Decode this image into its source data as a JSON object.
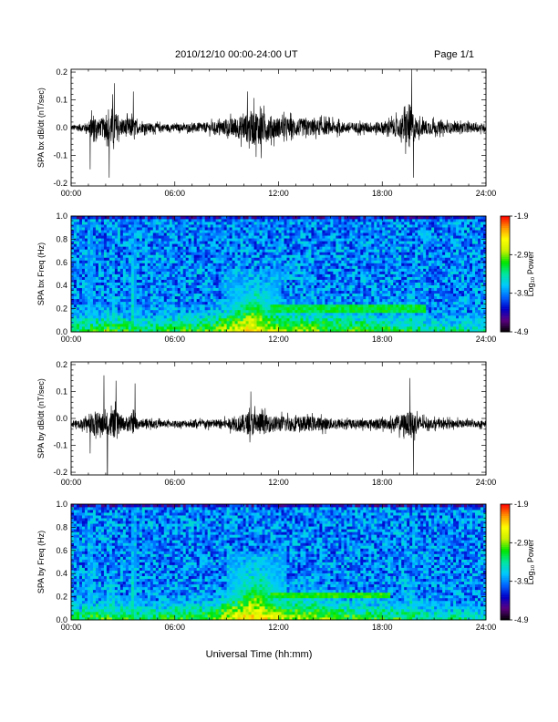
{
  "header": {
    "title": "2010/12/10   00:00-24:00 UT",
    "page": "Page 1/1"
  },
  "xlabel": "Universal Time (hh:mm)",
  "colorbar": {
    "label": "Log₁₀ Power",
    "ticks": [
      "-1.9",
      "-2.9",
      "-3.9",
      "-4.9"
    ],
    "range": [
      -4.9,
      -1.9
    ],
    "colormap": [
      "#000000",
      "#5a0080",
      "#0000c8",
      "#0064ff",
      "#00c8ff",
      "#00e6a0",
      "#00e600",
      "#c8f000",
      "#ffff00",
      "#ff9600",
      "#ff0000"
    ]
  },
  "chart_data": [
    {
      "type": "line",
      "ylabel": "SPA bx dB/dt (nT/sec)",
      "xlim": [
        0,
        24
      ],
      "ylim": [
        -0.21,
        0.21
      ],
      "x_ticks": [
        "00:00",
        "06:00",
        "12:00",
        "18:00",
        "24:00"
      ],
      "y_ticks": [
        "0.2",
        "0.1",
        "0.0",
        "-0.1",
        "-0.2"
      ],
      "y_tick_values": [
        0.2,
        0.1,
        0.0,
        -0.1,
        -0.2
      ],
      "baseline": 0.0,
      "activity": [
        {
          "t": 0.0,
          "amp": 0.015
        },
        {
          "t": 1.0,
          "amp": 0.03
        },
        {
          "t": 1.3,
          "amp": 0.09
        },
        {
          "t": 1.6,
          "amp": 0.05
        },
        {
          "t": 2.1,
          "amp": 0.07
        },
        {
          "t": 2.4,
          "amp": 0.13
        },
        {
          "t": 2.8,
          "amp": 0.05
        },
        {
          "t": 3.5,
          "amp": 0.06
        },
        {
          "t": 4.0,
          "amp": 0.03
        },
        {
          "t": 6.0,
          "amp": 0.02
        },
        {
          "t": 8.5,
          "amp": 0.035
        },
        {
          "t": 9.8,
          "amp": 0.07
        },
        {
          "t": 10.6,
          "amp": 0.11
        },
        {
          "t": 11.3,
          "amp": 0.08
        },
        {
          "t": 12.0,
          "amp": 0.06
        },
        {
          "t": 14.0,
          "amp": 0.05
        },
        {
          "t": 16.0,
          "amp": 0.03
        },
        {
          "t": 18.0,
          "amp": 0.035
        },
        {
          "t": 19.0,
          "amp": 0.06
        },
        {
          "t": 19.6,
          "amp": 0.14
        },
        {
          "t": 20.0,
          "amp": 0.05
        },
        {
          "t": 22.0,
          "amp": 0.03
        },
        {
          "t": 24.0,
          "amp": 0.025
        }
      ],
      "spikes": [
        {
          "t": 1.1,
          "v": -0.15
        },
        {
          "t": 2.2,
          "v": -0.18
        },
        {
          "t": 2.5,
          "v": 0.16
        },
        {
          "t": 3.6,
          "v": 0.13
        },
        {
          "t": 10.2,
          "v": 0.13
        },
        {
          "t": 11.0,
          "v": -0.11
        },
        {
          "t": 19.7,
          "v": 0.21
        },
        {
          "t": 19.8,
          "v": -0.18
        }
      ]
    },
    {
      "type": "heatmap",
      "ylabel": "SPA bx Freq (Hz)",
      "xlim": [
        0,
        24
      ],
      "ylim": [
        0,
        1.0
      ],
      "x_ticks": [
        "00:00",
        "06:00",
        "12:00",
        "18:00",
        "24:00"
      ],
      "y_ticks": [
        "1.0",
        "0.8",
        "0.6",
        "0.4",
        "0.2",
        "0.0"
      ],
      "y_tick_values": [
        1.0,
        0.8,
        0.6,
        0.4,
        0.2,
        0.0
      ],
      "zlim": [
        -4.9,
        -1.9
      ],
      "background": -3.9,
      "low_freq_band": [
        {
          "t": 0,
          "v": -3.2
        },
        {
          "t": 2,
          "v": -3.0
        },
        {
          "t": 4,
          "v": -3.2
        },
        {
          "t": 8,
          "v": -3.0
        },
        {
          "t": 10.5,
          "v": -2.4
        },
        {
          "t": 12,
          "v": -2.8
        },
        {
          "t": 16,
          "v": -3.0
        },
        {
          "t": 20,
          "v": -3.2
        },
        {
          "t": 24,
          "v": -3.4
        }
      ],
      "features": [
        {
          "t": 1.1,
          "width": 0.1,
          "fmax": 1.0,
          "level": -3.2
        },
        {
          "t": 2.5,
          "width": 0.1,
          "fmax": 0.7,
          "level": -3.1
        },
        {
          "t": 3.6,
          "width": 0.12,
          "fmax": 1.0,
          "level": -3.0
        },
        {
          "t": 10.6,
          "width": 1.6,
          "fmax": 0.55,
          "level": -2.8
        },
        {
          "t": 14.2,
          "width": 0.5,
          "fmax": 0.35,
          "level": -3.1
        },
        {
          "t": 19.7,
          "width": 0.2,
          "fmax": 0.45,
          "level": -3.0
        }
      ],
      "tone_lines": [
        {
          "t0": 11.5,
          "t1": 20.5,
          "f": 0.2,
          "level": -3.2
        }
      ]
    },
    {
      "type": "line",
      "ylabel": "SPA by dB/dt (nT/sec)",
      "xlim": [
        0,
        24
      ],
      "ylim": [
        -0.21,
        0.21
      ],
      "x_ticks": [
        "00:00",
        "06:00",
        "12:00",
        "18:00",
        "24:00"
      ],
      "y_ticks": [
        "0.2",
        "0.1",
        "0.0",
        "-0.1",
        "-0.2"
      ],
      "y_tick_values": [
        0.2,
        0.1,
        0.0,
        -0.1,
        -0.2
      ],
      "baseline": -0.02,
      "activity": [
        {
          "t": 0.0,
          "amp": 0.015
        },
        {
          "t": 1.0,
          "amp": 0.04
        },
        {
          "t": 1.3,
          "amp": 0.08
        },
        {
          "t": 2.0,
          "amp": 0.06
        },
        {
          "t": 2.5,
          "amp": 0.09
        },
        {
          "t": 3.0,
          "amp": 0.04
        },
        {
          "t": 3.6,
          "amp": 0.06
        },
        {
          "t": 4.0,
          "amp": 0.025
        },
        {
          "t": 6.0,
          "amp": 0.02
        },
        {
          "t": 9.0,
          "amp": 0.03
        },
        {
          "t": 10.0,
          "amp": 0.06
        },
        {
          "t": 10.7,
          "amp": 0.08
        },
        {
          "t": 11.5,
          "amp": 0.05
        },
        {
          "t": 14.0,
          "amp": 0.045
        },
        {
          "t": 16.0,
          "amp": 0.025
        },
        {
          "t": 18.5,
          "amp": 0.035
        },
        {
          "t": 19.7,
          "amp": 0.08
        },
        {
          "t": 20.5,
          "amp": 0.03
        },
        {
          "t": 24.0,
          "amp": 0.02
        }
      ],
      "spikes": [
        {
          "t": 1.1,
          "v": -0.13
        },
        {
          "t": 1.9,
          "v": 0.16
        },
        {
          "t": 2.1,
          "v": -0.21
        },
        {
          "t": 2.6,
          "v": 0.14
        },
        {
          "t": 3.7,
          "v": 0.13
        },
        {
          "t": 10.4,
          "v": 0.1
        },
        {
          "t": 19.6,
          "v": 0.15
        },
        {
          "t": 19.8,
          "v": -0.21
        }
      ]
    },
    {
      "type": "heatmap",
      "ylabel": "SPA by Freq (Hz)",
      "xlim": [
        0,
        24
      ],
      "ylim": [
        0,
        1.0
      ],
      "x_ticks": [
        "00:00",
        "06:00",
        "12:00",
        "18:00",
        "24:00"
      ],
      "y_ticks": [
        "1.0",
        "0.8",
        "0.6",
        "0.4",
        "0.2",
        "0.0"
      ],
      "y_tick_values": [
        1.0,
        0.8,
        0.6,
        0.4,
        0.2,
        0.0
      ],
      "zlim": [
        -4.9,
        -1.9
      ],
      "background": -3.9,
      "low_freq_band": [
        {
          "t": 0,
          "v": -3.2
        },
        {
          "t": 2,
          "v": -3.0
        },
        {
          "t": 4,
          "v": -3.2
        },
        {
          "t": 8,
          "v": -3.0
        },
        {
          "t": 10.5,
          "v": -2.3
        },
        {
          "t": 12,
          "v": -2.7
        },
        {
          "t": 16,
          "v": -3.0
        },
        {
          "t": 20,
          "v": -3.2
        },
        {
          "t": 24,
          "v": -3.4
        }
      ],
      "features": [
        {
          "t": 1.1,
          "width": 0.1,
          "fmax": 0.9,
          "level": -3.2
        },
        {
          "t": 2.5,
          "width": 0.1,
          "fmax": 0.6,
          "level": -3.1
        },
        {
          "t": 3.6,
          "width": 0.12,
          "fmax": 1.0,
          "level": -3.0
        },
        {
          "t": 10.7,
          "width": 1.7,
          "fmax": 0.6,
          "level": -2.7
        },
        {
          "t": 14.4,
          "width": 0.5,
          "fmax": 0.35,
          "level": -3.0
        },
        {
          "t": 19.7,
          "width": 0.2,
          "fmax": 0.4,
          "level": -3.0
        }
      ],
      "tone_lines": [
        {
          "t0": 11.5,
          "t1": 18.5,
          "f": 0.22,
          "level": -3.1
        }
      ]
    }
  ]
}
